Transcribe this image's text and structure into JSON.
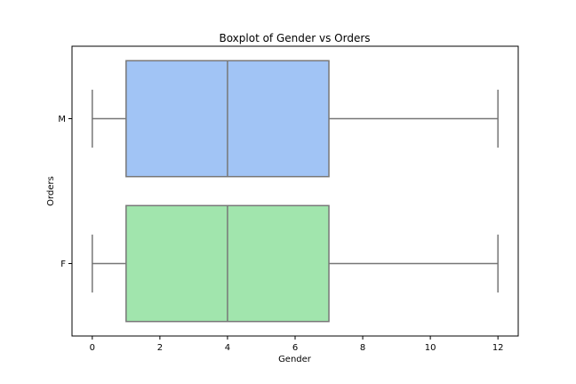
{
  "chart_data": {
    "type": "boxplot",
    "orientation": "horizontal",
    "title": "Boxplot of Gender vs Orders",
    "xlabel": "Gender",
    "ylabel": "Orders",
    "xlim": [
      -0.6,
      12.6
    ],
    "xticks": [
      0,
      2,
      4,
      6,
      8,
      10,
      12
    ],
    "grid": false,
    "categories": [
      "M",
      "F"
    ],
    "boxes": [
      {
        "category": "M",
        "whisker_low": 0,
        "q1": 1,
        "median": 4,
        "q3": 7,
        "whisker_high": 12,
        "color": "#a1c4f5"
      },
      {
        "category": "F",
        "whisker_low": 0,
        "q1": 1,
        "median": 4,
        "q3": 7,
        "whisker_high": 12,
        "color": "#a1e5ad"
      }
    ],
    "line_color": "#777777"
  }
}
